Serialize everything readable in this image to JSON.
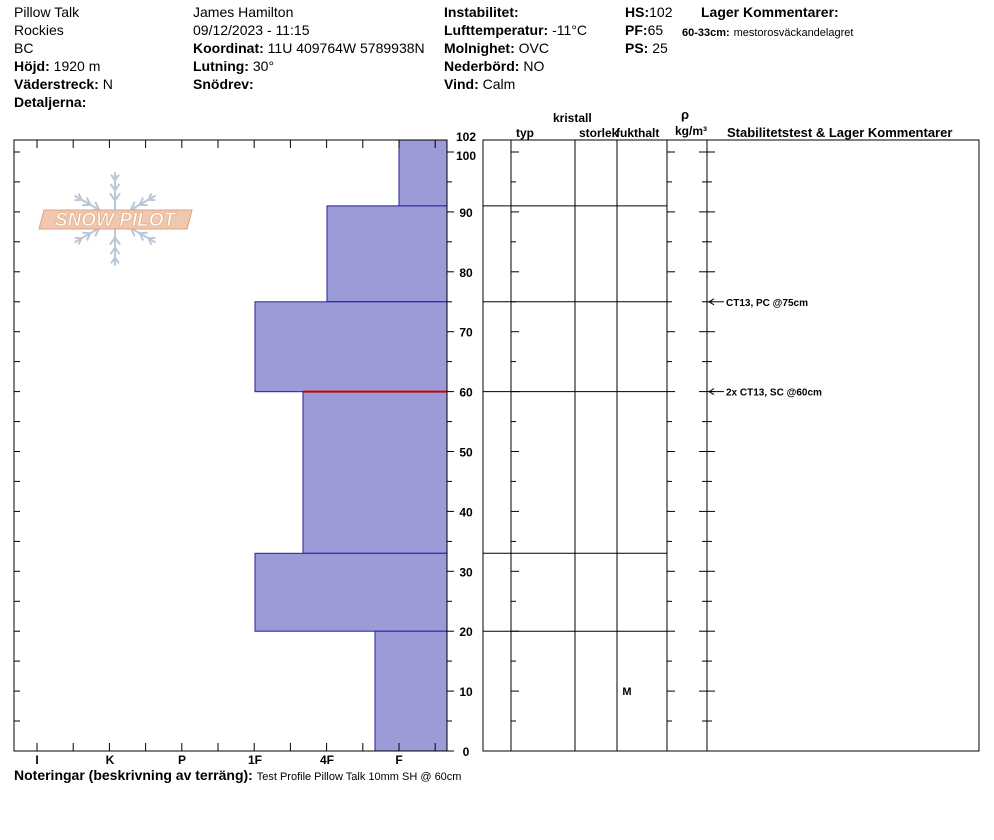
{
  "header": {
    "location_name": "Pillow Talk",
    "range": "Rockies",
    "state": "BC",
    "elevation_label": "Höjd:",
    "elevation_value": "1920 m",
    "aspect_label": "Väderstreck:",
    "aspect_value": "N",
    "details_label": "Detaljerna:",
    "observer": "James Hamilton",
    "datetime": "09/12/2023 - 11:15",
    "coord_label": "Koordinat:",
    "coord_value": "11U 409764W 5789938N",
    "slope_label": "Lutning:",
    "slope_value": "30°",
    "drift_label": "Snödrev:",
    "instability_label": "Instabilitet:",
    "air_temp_label": "Lufttemperatur:",
    "air_temp_value": "-11°C",
    "sky_label": "Molnighet:",
    "sky_value": "OVC",
    "precip_label": "Nederbörd:",
    "precip_value": "NO",
    "wind_label": "Vind:",
    "wind_value": "Calm",
    "hs_label": "HS:",
    "hs_value": "102",
    "pf_label": "PF:",
    "pf_value": "65",
    "ps_label": "PS:",
    "ps_value": "25",
    "layer_comments_label": "Lager Kommentarer:",
    "layer_comment_range": "60-33cm:",
    "layer_comment_text": "mestorosväckandelagret"
  },
  "logo": {
    "text": "SNOW PILOT"
  },
  "columns": {
    "crystal_label": "kristall",
    "type_label": "typ",
    "size_label": "storlek",
    "moisture_label": "fukthalt",
    "rho_label": "ρ",
    "density_unit": "kg/m³",
    "stability_label": "Stabilitetstest & Lager Kommentarer"
  },
  "notes": {
    "label": "Noteringar (beskrivning av terräng):",
    "text": "Test Profile Pillow Talk 10mm SH @ 60cm"
  },
  "colors": {
    "bar_fill": "#9b9bd7",
    "bar_stroke": "#2020a0",
    "weak_layer": "#cc0000",
    "logo": "#e8b8a0"
  },
  "chart_data": {
    "type": "bar",
    "hand_hardness_categories": [
      "I",
      "K",
      "P",
      "1F",
      "4F",
      "F"
    ],
    "y_axis_ticks": [
      0,
      10,
      20,
      30,
      40,
      50,
      60,
      70,
      80,
      90,
      100,
      102
    ],
    "ylim": [
      0,
      102
    ],
    "layers": [
      {
        "top": 102,
        "bottom": 91,
        "hardness": "F"
      },
      {
        "top": 91,
        "bottom": 75,
        "hardness": "4F"
      },
      {
        "top": 75,
        "bottom": 60,
        "hardness": "1F"
      },
      {
        "top": 60,
        "bottom": 33,
        "hardness": "4F-"
      },
      {
        "top": 33,
        "bottom": 20,
        "hardness": "1F"
      },
      {
        "top": 20,
        "bottom": 0,
        "hardness": "F+"
      }
    ],
    "weak_layer_height": 60,
    "moisture_labels": [
      {
        "height": 10,
        "text": "M"
      }
    ],
    "stability_tests": [
      {
        "height": 75,
        "text": "CT13, PC @75cm"
      },
      {
        "height": 60,
        "text": "2x CT13, SC @60cm"
      }
    ]
  }
}
